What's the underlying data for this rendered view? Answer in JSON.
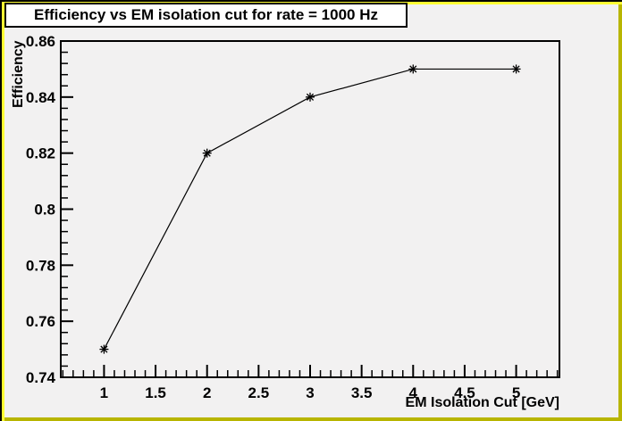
{
  "window": {
    "background": "#f2f1f1",
    "border_light": "#ffff33",
    "border_dark": "#b8b500",
    "border_outline": "#000000"
  },
  "title_box": {
    "text": "Efficiency vs EM isolation cut for rate = 1000 Hz",
    "background": "#ffffff",
    "border_color": "#000000"
  },
  "chart_data": {
    "type": "line",
    "title": "Efficiency vs EM isolation cut for rate = 1000 Hz",
    "xlabel": "EM Isolation Cut [GeV]",
    "ylabel": "Efficiency",
    "x": [
      1,
      2,
      3,
      4,
      5
    ],
    "y": [
      0.75,
      0.82,
      0.84,
      0.85,
      0.85
    ],
    "xlim": [
      0.58,
      5.42
    ],
    "ylim": [
      0.74,
      0.86
    ],
    "x_major_ticks": [
      1,
      1.5,
      2,
      2.5,
      3,
      3.5,
      4,
      4.5,
      5
    ],
    "x_tick_labels": [
      "1",
      "1.5",
      "2",
      "2.5",
      "3",
      "3.5",
      "4",
      "4.5",
      "5"
    ],
    "x_minor_step": 0.1,
    "y_major_ticks": [
      0.74,
      0.76,
      0.78,
      0.8,
      0.82,
      0.84,
      0.86
    ],
    "y_tick_labels": [
      "0.74",
      "0.76",
      "0.78",
      "0.8",
      "0.82",
      "0.84",
      "0.86"
    ],
    "y_minor_step": 0.004,
    "marker": "asterisk",
    "line_color": "#000000",
    "marker_color": "#000000",
    "grid": false,
    "legend": null
  }
}
